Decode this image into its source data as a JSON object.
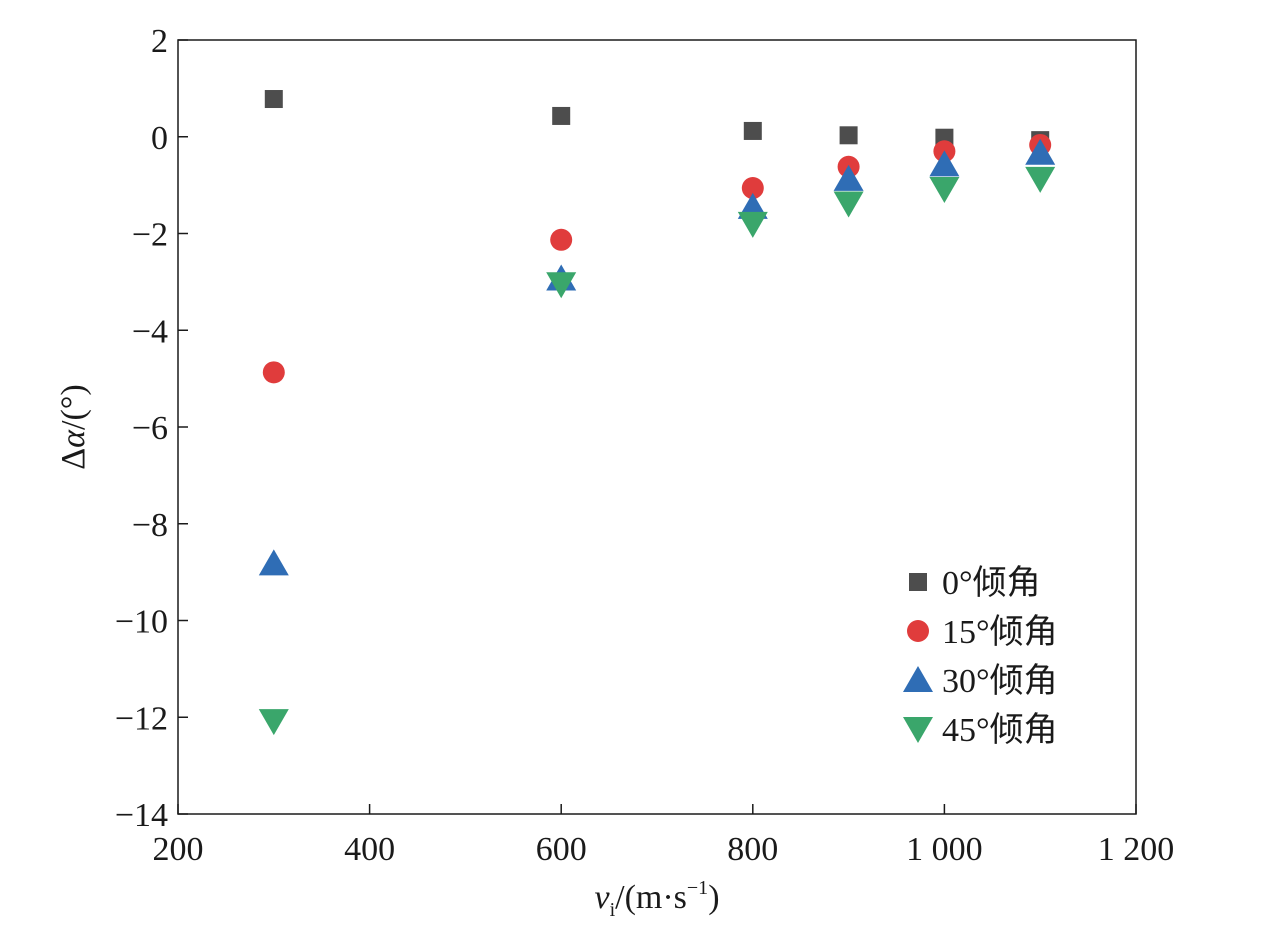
{
  "chart_data": {
    "type": "scatter",
    "x_axis": {
      "label_main": "v",
      "label_sub": "i",
      "label_unit": "/(m·s",
      "label_exp": "−1",
      "label_close": ")",
      "range": [
        200,
        1200
      ],
      "ticks": [
        200,
        400,
        600,
        800,
        1000,
        1200
      ],
      "tick_labels": [
        "200",
        "400",
        "600",
        "800",
        "1 000",
        "1 200"
      ]
    },
    "y_axis": {
      "label_delta": "Δ",
      "label_symbol": "α",
      "label_unit": "/(°)",
      "range": [
        -14,
        2
      ],
      "ticks": [
        2,
        0,
        -2,
        -4,
        -6,
        -8,
        -10,
        -12,
        -14
      ],
      "tick_labels": [
        "2",
        "0",
        "−2",
        "−4",
        "−6",
        "−8",
        "−10",
        "−12",
        "−14"
      ]
    },
    "grid": false,
    "legend_position": "bottom-right",
    "series": [
      {
        "name": "0°倾角",
        "marker": "square",
        "color": "#4d4d4d",
        "x": [
          300,
          600,
          800,
          900,
          1000,
          1100
        ],
        "y": [
          0.78,
          0.43,
          0.12,
          0.03,
          -0.02,
          -0.07
        ]
      },
      {
        "name": "15°倾角",
        "marker": "circle",
        "color": "#e03c3c",
        "x": [
          300,
          600,
          800,
          900,
          1000,
          1100
        ],
        "y": [
          -4.87,
          -2.13,
          -1.06,
          -0.62,
          -0.3,
          -0.17
        ]
      },
      {
        "name": "30°倾角",
        "marker": "triangle-up",
        "color": "#2f6db5",
        "x": [
          300,
          600,
          800,
          900,
          1000,
          1100
        ],
        "y": [
          -8.82,
          -2.93,
          -1.45,
          -0.87,
          -0.57,
          -0.33
        ]
      },
      {
        "name": "45°倾角",
        "marker": "triangle-down",
        "color": "#3aa66b",
        "x": [
          300,
          600,
          800,
          900,
          1000,
          1100
        ],
        "y": [
          -12.08,
          -3.05,
          -1.8,
          -1.38,
          -1.08,
          -0.87
        ]
      }
    ]
  }
}
